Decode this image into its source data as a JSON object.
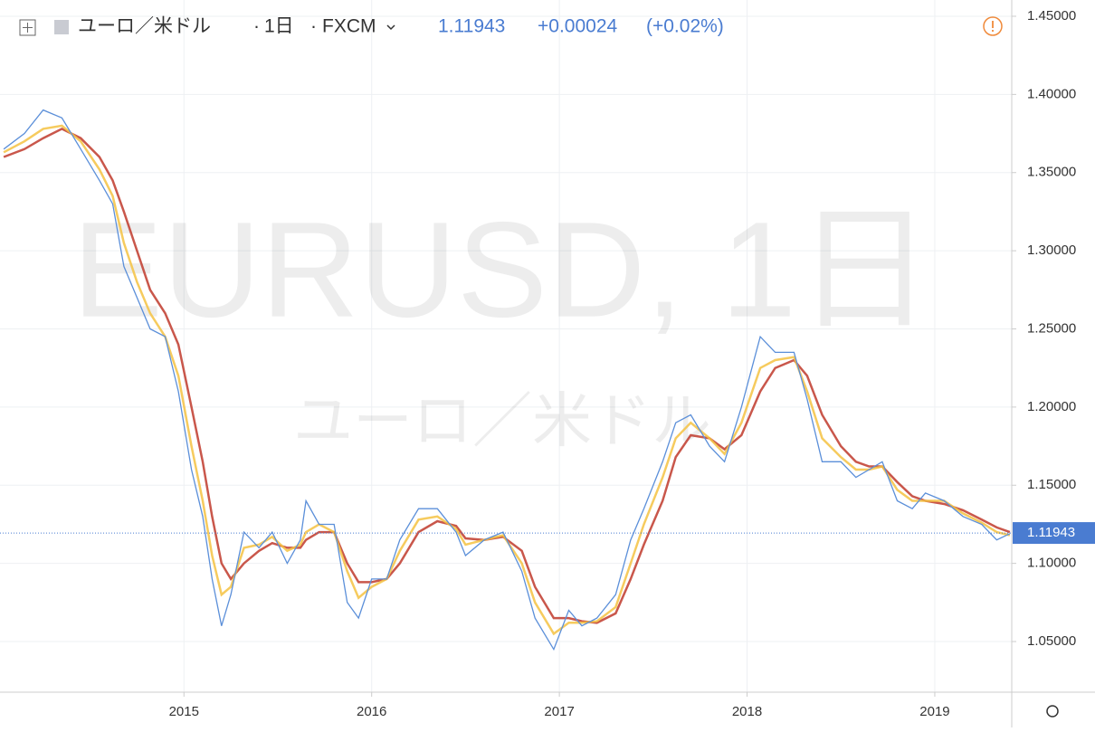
{
  "header": {
    "symbol": "ユーロ／米ドル",
    "interval": "1日",
    "source": "FXCM",
    "price": "1.11943",
    "change": "+0.00024",
    "change_pct": "(+0.02%)"
  },
  "watermark": {
    "title": "EURUSD, 1日",
    "subtitle": "ユーロ／米ドル"
  },
  "chart_data": {
    "type": "line",
    "x": [
      2014.04,
      2014.15,
      2014.25,
      2014.35,
      2014.45,
      2014.55,
      2014.62,
      2014.68,
      2014.75,
      2014.82,
      2014.9,
      2014.97,
      2015.04,
      2015.1,
      2015.15,
      2015.2,
      2015.25,
      2015.32,
      2015.4,
      2015.47,
      2015.55,
      2015.62,
      2015.65,
      2015.72,
      2015.8,
      2015.87,
      2015.93,
      2016.0,
      2016.08,
      2016.15,
      2016.25,
      2016.35,
      2016.45,
      2016.5,
      2016.6,
      2016.7,
      2016.8,
      2016.87,
      2016.97,
      2017.05,
      2017.12,
      2017.2,
      2017.3,
      2017.38,
      2017.45,
      2017.55,
      2017.62,
      2017.7,
      2017.8,
      2017.88,
      2017.97,
      2018.07,
      2018.15,
      2018.25,
      2018.32,
      2018.4,
      2018.5,
      2018.58,
      2018.65,
      2018.72,
      2018.8,
      2018.88,
      2018.95,
      2019.05,
      2019.15,
      2019.25,
      2019.33,
      2019.4
    ],
    "series": [
      {
        "color": "#5b8fd9",
        "values": [
          1.365,
          1.375,
          1.39,
          1.385,
          1.365,
          1.345,
          1.33,
          1.29,
          1.27,
          1.25,
          1.245,
          1.21,
          1.16,
          1.13,
          1.09,
          1.06,
          1.08,
          1.12,
          1.11,
          1.12,
          1.1,
          1.115,
          1.14,
          1.125,
          1.125,
          1.075,
          1.065,
          1.09,
          1.09,
          1.115,
          1.135,
          1.135,
          1.12,
          1.105,
          1.115,
          1.12,
          1.095,
          1.065,
          1.045,
          1.07,
          1.06,
          1.065,
          1.08,
          1.115,
          1.135,
          1.165,
          1.19,
          1.195,
          1.175,
          1.165,
          1.2,
          1.245,
          1.235,
          1.235,
          1.205,
          1.165,
          1.165,
          1.155,
          1.16,
          1.165,
          1.14,
          1.135,
          1.145,
          1.14,
          1.13,
          1.125,
          1.115,
          1.119
        ]
      },
      {
        "color": "#f5c242",
        "values": [
          1.363,
          1.37,
          1.378,
          1.38,
          1.37,
          1.352,
          1.335,
          1.305,
          1.28,
          1.26,
          1.245,
          1.22,
          1.175,
          1.14,
          1.105,
          1.08,
          1.085,
          1.11,
          1.112,
          1.117,
          1.108,
          1.112,
          1.12,
          1.125,
          1.12,
          1.095,
          1.078,
          1.085,
          1.09,
          1.108,
          1.128,
          1.13,
          1.122,
          1.112,
          1.115,
          1.118,
          1.1,
          1.075,
          1.055,
          1.062,
          1.062,
          1.063,
          1.072,
          1.1,
          1.125,
          1.155,
          1.18,
          1.19,
          1.18,
          1.17,
          1.19,
          1.225,
          1.23,
          1.232,
          1.21,
          1.18,
          1.168,
          1.16,
          1.16,
          1.162,
          1.147,
          1.14,
          1.14,
          1.14,
          1.132,
          1.126,
          1.12,
          1.118
        ]
      },
      {
        "color": "#c0392b",
        "values": [
          1.36,
          1.365,
          1.372,
          1.378,
          1.372,
          1.36,
          1.345,
          1.325,
          1.3,
          1.275,
          1.26,
          1.24,
          1.2,
          1.165,
          1.13,
          1.1,
          1.09,
          1.1,
          1.108,
          1.113,
          1.11,
          1.11,
          1.115,
          1.12,
          1.12,
          1.1,
          1.088,
          1.088,
          1.09,
          1.1,
          1.12,
          1.127,
          1.124,
          1.116,
          1.115,
          1.117,
          1.108,
          1.085,
          1.065,
          1.065,
          1.063,
          1.062,
          1.068,
          1.09,
          1.112,
          1.14,
          1.168,
          1.182,
          1.18,
          1.173,
          1.182,
          1.21,
          1.225,
          1.23,
          1.22,
          1.195,
          1.175,
          1.165,
          1.162,
          1.162,
          1.152,
          1.143,
          1.14,
          1.138,
          1.134,
          1.128,
          1.123,
          1.12
        ]
      }
    ],
    "last_price": {
      "value": 1.11943,
      "label": "1.11943"
    },
    "xlim": [
      2014.02,
      2019.41
    ],
    "xticks": [
      2015,
      2016,
      2017,
      2018,
      2019
    ],
    "ylim": [
      1.0176,
      1.4604
    ],
    "yticks": [
      {
        "value": 1.05,
        "label": "1.05000"
      },
      {
        "value": 1.1,
        "label": "1.10000"
      },
      {
        "value": 1.15,
        "label": "1.15000"
      },
      {
        "value": 1.2,
        "label": "1.20000"
      },
      {
        "value": 1.25,
        "label": "1.25000"
      },
      {
        "value": 1.3,
        "label": "1.30000"
      },
      {
        "value": 1.35,
        "label": "1.35000"
      },
      {
        "value": 1.4,
        "label": "1.40000"
      },
      {
        "value": 1.45,
        "label": "1.45000"
      }
    ],
    "grid": true
  }
}
